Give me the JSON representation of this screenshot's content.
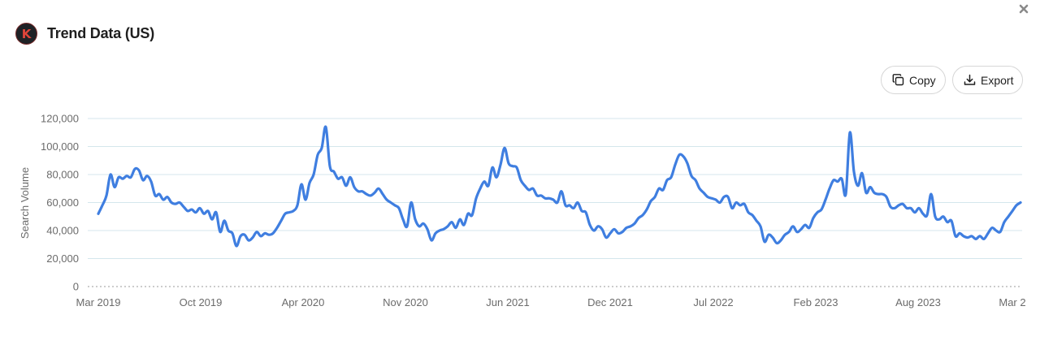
{
  "header": {
    "title": "Trend Data (US)",
    "logo_letter": "K"
  },
  "toolbar": {
    "copy_label": "Copy",
    "export_label": "Export"
  },
  "icons": {
    "close": "close-icon",
    "copy": "copy-icon",
    "export": "download-icon"
  },
  "colors": {
    "line": "#3f7ee0",
    "grid": "#d4e6ec",
    "text": "#6b6b6b",
    "logo_bg": "#1f2226",
    "logo_letter": "#e0453a"
  },
  "chart_data": {
    "type": "line",
    "title": "",
    "xlabel": "",
    "ylabel": "Search Volume",
    "ylim": [
      0,
      120000
    ],
    "yticks": [
      0,
      20000,
      40000,
      60000,
      80000,
      100000,
      120000
    ],
    "ytick_labels": [
      "0",
      "20,000",
      "40,000",
      "60,000",
      "80,000",
      "100,000",
      "120,000"
    ],
    "xtick_labels": [
      "Mar 2019",
      "Oct 2019",
      "Apr 2020",
      "Nov 2020",
      "Jun 2021",
      "Dec 2021",
      "Jul 2022",
      "Feb 2023",
      "Aug 2023",
      "Mar 2"
    ],
    "grid": true,
    "series": [
      {
        "values": [
          52000,
          58000,
          65000,
          80000,
          71000,
          78000,
          77000,
          79000,
          78000,
          84000,
          83000,
          76000,
          79000,
          75000,
          65000,
          66000,
          62000,
          64000,
          60000,
          59000,
          60000,
          57000,
          54000,
          55000,
          53000,
          56000,
          52000,
          54000,
          48000,
          53000,
          39000,
          47000,
          40000,
          38000,
          29000,
          36000,
          37000,
          33000,
          35000,
          39000,
          36000,
          38000,
          37000,
          38000,
          42000,
          47000,
          52000,
          53000,
          54000,
          58000,
          73000,
          62000,
          74000,
          80000,
          94000,
          99000,
          114000,
          86000,
          82000,
          77000,
          78000,
          72000,
          78000,
          71000,
          68000,
          68000,
          66000,
          65000,
          67000,
          70000,
          66000,
          62000,
          60000,
          58000,
          56000,
          48000,
          43000,
          60000,
          48000,
          43000,
          45000,
          41000,
          33000,
          38000,
          40000,
          41000,
          43000,
          46000,
          42000,
          48000,
          44000,
          52000,
          51000,
          63000,
          70000,
          75000,
          72000,
          85000,
          78000,
          87000,
          99000,
          88000,
          86000,
          85000,
          76000,
          72000,
          69000,
          70000,
          65000,
          65000,
          63000,
          63000,
          62000,
          60000,
          68000,
          58000,
          58000,
          56000,
          60000,
          54000,
          53000,
          44000,
          40000,
          43000,
          41000,
          35000,
          38000,
          41000,
          38000,
          39000,
          42000,
          43000,
          45000,
          49000,
          51000,
          55000,
          61000,
          64000,
          70000,
          69000,
          76000,
          78000,
          87000,
          94000,
          93000,
          88000,
          79000,
          76000,
          70000,
          67000,
          64000,
          63000,
          62000,
          60000,
          64000,
          64000,
          56000,
          60000,
          58000,
          59000,
          53000,
          51000,
          47000,
          43000,
          32000,
          37000,
          35000,
          31000,
          33000,
          37000,
          39000,
          43000,
          39000,
          41000,
          44000,
          42000,
          49000,
          53000,
          55000,
          62000,
          70000,
          76000,
          75000,
          77000,
          66000,
          110000,
          82000,
          72000,
          81000,
          67000,
          71000,
          67000,
          66000,
          66000,
          64000,
          57000,
          56000,
          58000,
          59000,
          56000,
          56000,
          53000,
          56000,
          52000,
          51000,
          66000,
          50000,
          48000,
          50000,
          46000,
          47000,
          36000,
          38000,
          36000,
          35000,
          36000,
          34000,
          36000,
          34000,
          38000,
          42000,
          40000,
          39000,
          46000,
          50000,
          54000,
          58000,
          60000
        ]
      }
    ]
  }
}
